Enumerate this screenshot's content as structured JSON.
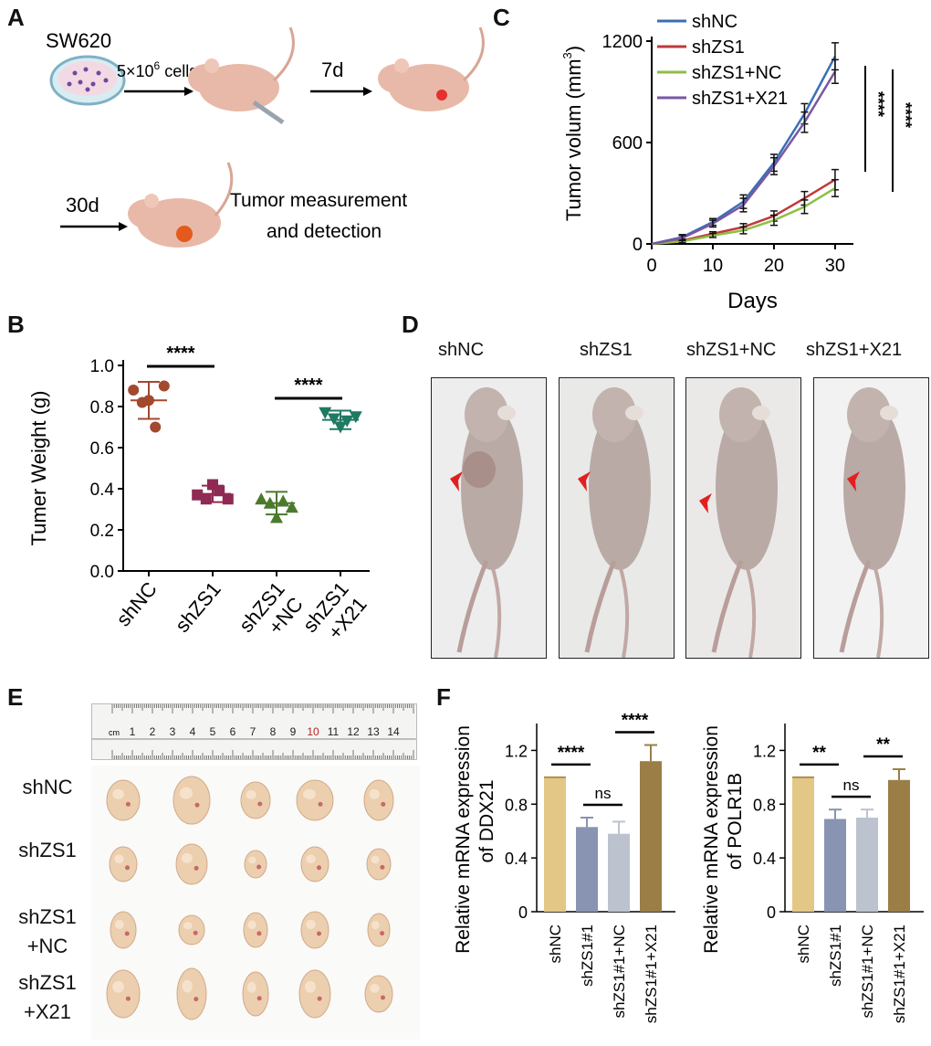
{
  "panels": {
    "A": "A",
    "B": "B",
    "C": "C",
    "D": "D",
    "E": "E",
    "F": "F"
  },
  "panelA": {
    "cell_line": "SW620",
    "cells_base": "5×10",
    "cells_exp": "6",
    "cells_suffix": " cells",
    "day7": "7d",
    "day30": "30d",
    "measure_line1": "Tumor measurement",
    "measure_line2": "and detection"
  },
  "panelB": {
    "chart_data": {
      "type": "scatter",
      "ylabel": "Tumer Weight (g)",
      "ylim": [
        0,
        1.0
      ],
      "yticks": [
        "0.0",
        "0.2",
        "0.4",
        "0.6",
        "0.8",
        "1.0"
      ],
      "categories": [
        "shNC",
        "shZS1",
        "shZS1\n+NC",
        "shZS1\n+X21"
      ],
      "cat_lines": [
        [
          "shNC"
        ],
        [
          "shZS1"
        ],
        [
          "shZS1",
          "+NC"
        ],
        [
          "shZS1",
          "+X21"
        ]
      ],
      "colors": [
        "#a2492f",
        "#8e2a53",
        "#4b7a2c",
        "#1f7a62"
      ],
      "markers": [
        "circle",
        "square",
        "triangle-up",
        "triangle-down"
      ],
      "points": [
        [
          0.88,
          0.82,
          0.83,
          0.7,
          0.9
        ],
        [
          0.37,
          0.35,
          0.42,
          0.39,
          0.35
        ],
        [
          0.35,
          0.33,
          0.26,
          0.34,
          0.31
        ],
        [
          0.77,
          0.74,
          0.7,
          0.73,
          0.75
        ]
      ],
      "means": [
        0.83,
        0.375,
        0.33,
        0.735
      ],
      "sd": [
        0.09,
        0.04,
        0.055,
        0.045
      ],
      "significance": [
        {
          "from": 0,
          "to": 1,
          "label": "****"
        },
        {
          "from": 2,
          "to": 3,
          "label": "****"
        }
      ]
    }
  },
  "panelC": {
    "chart_data": {
      "type": "line",
      "xlabel": "Days",
      "ylabel": "Tumor volum (mm",
      "ylabel_sup": "3",
      "ylabel_close": ")",
      "x": [
        0,
        5,
        10,
        15,
        20,
        25,
        30
      ],
      "xticks": [
        "0",
        "10",
        "20",
        "30"
      ],
      "xtick_values": [
        0,
        10,
        20,
        30
      ],
      "yticks": [
        "0",
        "600",
        "1200"
      ],
      "ytick_values": [
        0,
        600,
        1200
      ],
      "xlim": [
        0,
        33
      ],
      "ylim": [
        0,
        1200
      ],
      "series": [
        {
          "name": "shNC",
          "color": "#3a6fb5",
          "values": [
            0,
            40,
            130,
            250,
            480,
            770,
            1110
          ],
          "err": [
            0,
            15,
            20,
            40,
            50,
            60,
            80
          ]
        },
        {
          "name": "shZS1",
          "color": "#c0393b",
          "values": [
            0,
            20,
            60,
            100,
            165,
            270,
            380
          ],
          "err": [
            0,
            8,
            12,
            20,
            30,
            40,
            60
          ]
        },
        {
          "name": "shZS1+NC",
          "color": "#8bbf43",
          "values": [
            0,
            15,
            50,
            80,
            140,
            220,
            330
          ],
          "err": [
            0,
            8,
            12,
            20,
            30,
            40,
            50
          ]
        },
        {
          "name": "shZS1+X21",
          "color": "#7a57a3",
          "values": [
            0,
            35,
            120,
            230,
            460,
            720,
            1020
          ],
          "err": [
            0,
            15,
            20,
            40,
            50,
            60,
            70
          ]
        }
      ],
      "significance": [
        "****",
        "****"
      ]
    }
  },
  "panelD": {
    "labels": [
      "shNC",
      "shZS1",
      "shZS1+NC",
      "shZS1+X21"
    ],
    "arrow_color": "#e02020"
  },
  "panelE": {
    "row_labels": [
      [
        "shNC"
      ],
      [
        "shZS1"
      ],
      [
        "shZS1",
        "+NC"
      ],
      [
        "shZS1",
        "+X21"
      ]
    ],
    "ruler_unit": "cm",
    "ruler_numbers": [
      "1",
      "2",
      "3",
      "4",
      "5",
      "6",
      "7",
      "8",
      "9",
      "10",
      "11",
      "12",
      "13",
      "14"
    ]
  },
  "panelF": {
    "chart_data": [
      {
        "type": "bar",
        "ylabel_line1": "Relative mRNA expression",
        "ylabel_line2": "of DDX21",
        "categories": [
          "shNC",
          "shZS1#1",
          "shZS1#1+NC",
          "shZS1#1+X21"
        ],
        "values": [
          1.0,
          0.63,
          0.58,
          1.12
        ],
        "err": [
          0.0,
          0.07,
          0.09,
          0.12
        ],
        "ylim": [
          0,
          1.4
        ],
        "yticks": [
          "0",
          "0.4",
          "0.8",
          "1.2"
        ],
        "ytick_values": [
          0,
          0.4,
          0.8,
          1.2
        ],
        "colors": [
          "#e3c786",
          "#8894b2",
          "#bcc3cf",
          "#9a7e45"
        ],
        "significance": [
          {
            "from": 0,
            "to": 1,
            "label": "****"
          },
          {
            "from": 1,
            "to": 2,
            "label": "ns"
          },
          {
            "from": 2,
            "to": 3,
            "label": "****"
          }
        ]
      },
      {
        "type": "bar",
        "ylabel_line1": "Relative mRNA expression",
        "ylabel_line2": "of POLR1B",
        "categories": [
          "shNC",
          "shZS1#1",
          "shZS1#1+NC",
          "shZS1#1+X21"
        ],
        "values": [
          1.0,
          0.69,
          0.7,
          0.98
        ],
        "err": [
          0.0,
          0.07,
          0.06,
          0.08
        ],
        "ylim": [
          0,
          1.4
        ],
        "yticks": [
          "0",
          "0.4",
          "0.8",
          "1.2"
        ],
        "ytick_values": [
          0,
          0.4,
          0.8,
          1.2
        ],
        "colors": [
          "#e3c786",
          "#8894b2",
          "#bcc3cf",
          "#9a7e45"
        ],
        "significance": [
          {
            "from": 0,
            "to": 1,
            "label": "**"
          },
          {
            "from": 1,
            "to": 2,
            "label": "ns"
          },
          {
            "from": 2,
            "to": 3,
            "label": "**"
          }
        ]
      }
    ]
  }
}
